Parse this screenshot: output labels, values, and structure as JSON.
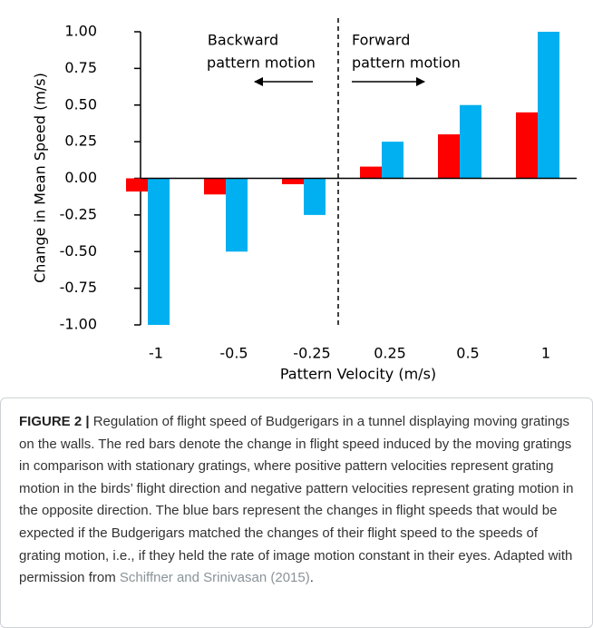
{
  "chart_data": {
    "type": "bar",
    "y_label": "Change in Mean Speed (m/s)",
    "x_label": "Pattern Velocity (m/s)",
    "annotations": [
      "Backward",
      "pattern motion",
      "Forward",
      "pattern motion"
    ],
    "categories": [
      "-1",
      "-0.5",
      "-0.25",
      "0.25",
      "0.5",
      "1"
    ],
    "series": [
      {
        "color": "#ff0000",
        "values": [
          -0.09,
          -0.11,
          -0.04,
          0.08,
          0.3,
          0.45
        ]
      },
      {
        "color": "#00b0f0",
        "values": [
          -1.0,
          -0.5,
          -0.25,
          0.25,
          0.5,
          1.0
        ]
      }
    ],
    "ylim": [
      -1,
      1
    ],
    "yticks": [
      {
        "value": 1,
        "label": "1.00"
      },
      {
        "value": 0.75,
        "label": "0.75"
      },
      {
        "value": 0.5,
        "label": "0.50"
      },
      {
        "value": 0.25,
        "label": "0.25"
      },
      {
        "value": 0,
        "label": "0.00"
      },
      {
        "value": -0.25,
        "label": "-0.25"
      },
      {
        "value": -0.5,
        "label": "-0.50"
      },
      {
        "value": -0.75,
        "label": "-0.75"
      },
      {
        "value": -1,
        "label": "-1.00"
      }
    ],
    "grid": false
  },
  "caption": {
    "label": "FIGURE 2 |",
    "text": "Regulation of flight speed of Budgerigars in a tunnel displaying moving gratings on the walls. The red bars denote the change in flight speed induced by the moving gratings in comparison with stationary gratings, where positive pattern velocities represent grating motion in the birds’ flight direction and negative pattern velocities represent grating motion in the opposite direction. The blue bars represent the changes in flight speeds that would be expected if the Budgerigars matched the changes of their flight speed to the speeds of grating motion, i.e., if they held the rate of image motion constant in their eyes. Adapted with permission from",
    "reference": "Schiffner and Srinivasan (2015)",
    "end": "."
  }
}
